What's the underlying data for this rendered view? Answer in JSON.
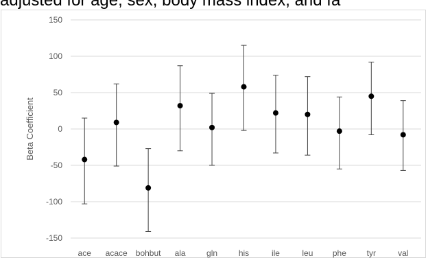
{
  "caption_fragment": "adjusted for age, sex, body mass index, and fa",
  "colors": {
    "grid": "#d9d9d9",
    "marker": "#000000",
    "errorbar": "#404040",
    "text": "#595959"
  },
  "chart_data": {
    "type": "scatter",
    "ylabel": "Beta Coefficient",
    "ylim": [
      -160,
      150
    ],
    "yticks": [
      -150,
      -100,
      -50,
      0,
      50,
      100,
      150
    ],
    "yticklabels": [
      "-150",
      "-100",
      "-50",
      "0",
      "50",
      "100",
      "150"
    ],
    "grid": true,
    "error_bars": true,
    "categories": [
      "ace",
      "acace",
      "bohbut",
      "ala",
      "gln",
      "his",
      "ile",
      "leu",
      "phe",
      "tyr",
      "val"
    ],
    "values": [
      -42,
      9,
      -81,
      32,
      2,
      58,
      22,
      20,
      -3,
      45,
      -8
    ],
    "ci_lower": [
      -103,
      -51,
      -141,
      -30,
      -50,
      -2,
      -33,
      -36,
      -55,
      -8,
      -57
    ],
    "ci_upper": [
      15,
      62,
      -27,
      87,
      49,
      115,
      74,
      72,
      44,
      92,
      39
    ]
  }
}
